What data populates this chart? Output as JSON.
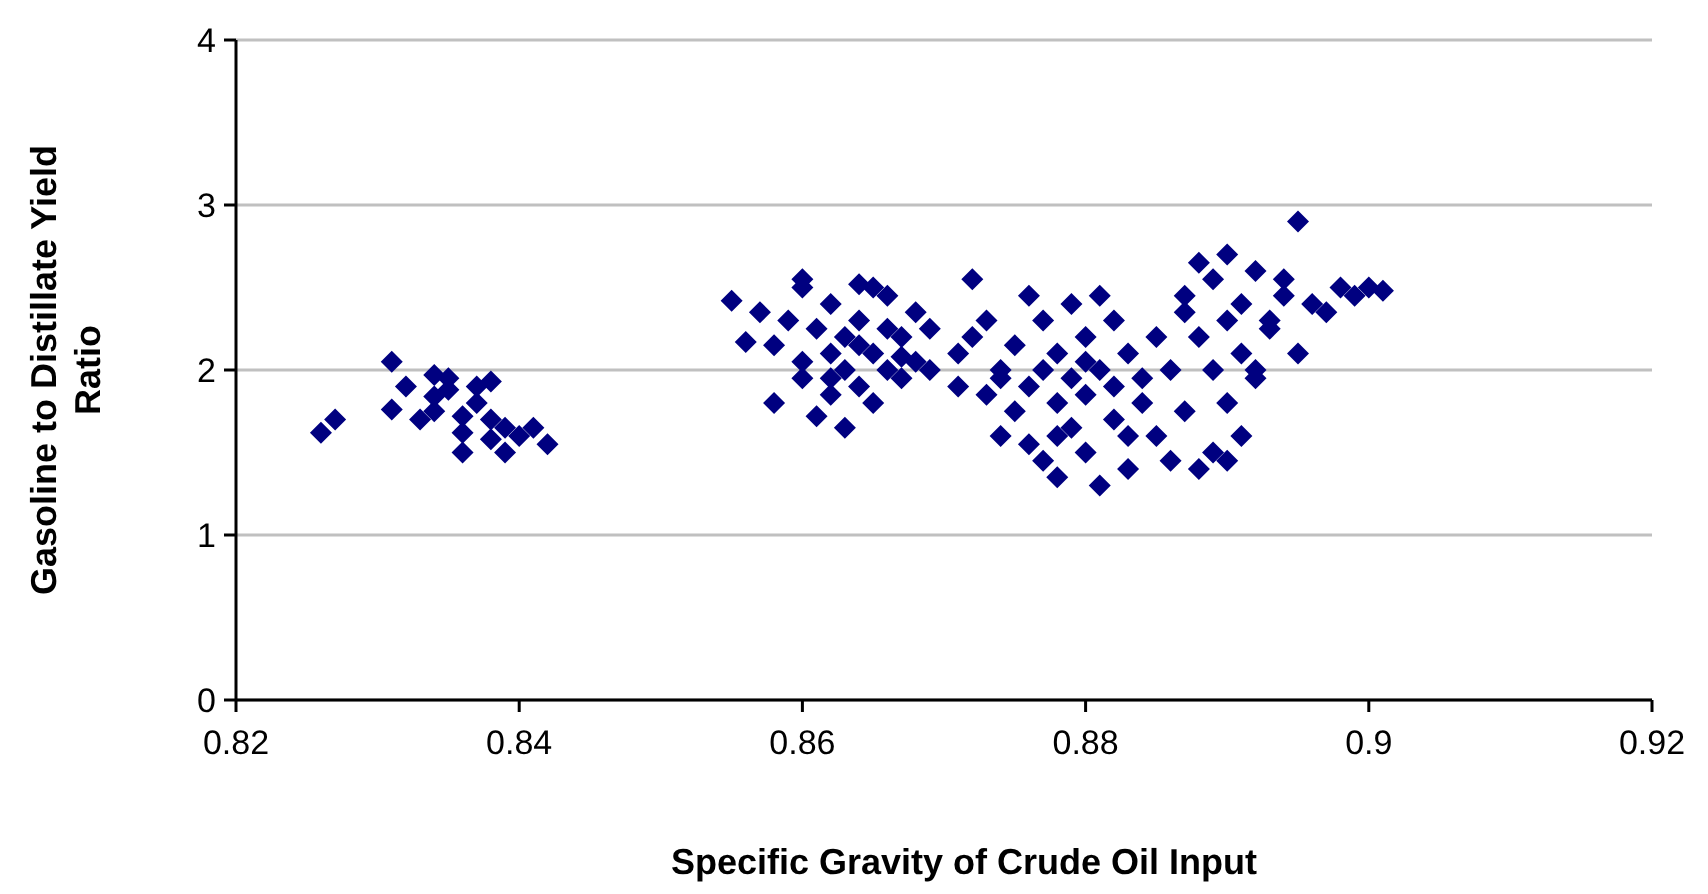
{
  "chart_data": {
    "type": "scatter",
    "xlabel": "Specific Gravity of Crude Oil Input",
    "ylabel": "Gasoline to Distillate Yield Ratio",
    "xlim": [
      0.82,
      0.92
    ],
    "xticks": [
      0.82,
      0.84,
      0.86,
      0.88,
      0.9,
      0.92
    ],
    "ylim": [
      0,
      4
    ],
    "yticks": [
      0,
      1,
      2,
      3,
      4
    ],
    "grid": "y",
    "marker": "diamond",
    "series": [
      {
        "color": "#000080",
        "x": [
          0.826,
          0.827,
          0.831,
          0.831,
          0.832,
          0.833,
          0.834,
          0.834,
          0.835,
          0.835,
          0.836,
          0.836,
          0.837,
          0.837,
          0.838,
          0.838,
          0.839,
          0.839,
          0.84,
          0.841,
          0.842,
          0.836,
          0.838,
          0.834,
          0.855,
          0.856,
          0.857,
          0.858,
          0.858,
          0.859,
          0.86,
          0.86,
          0.86,
          0.861,
          0.861,
          0.862,
          0.862,
          0.862,
          0.863,
          0.863,
          0.863,
          0.864,
          0.864,
          0.864,
          0.865,
          0.865,
          0.866,
          0.866,
          0.866,
          0.867,
          0.867,
          0.868,
          0.868,
          0.869,
          0.869,
          0.86,
          0.865,
          0.862,
          0.864,
          0.867,
          0.871,
          0.871,
          0.872,
          0.872,
          0.873,
          0.873,
          0.874,
          0.874,
          0.875,
          0.875,
          0.876,
          0.876,
          0.876,
          0.877,
          0.877,
          0.877,
          0.878,
          0.878,
          0.878,
          0.879,
          0.879,
          0.879,
          0.88,
          0.88,
          0.88,
          0.881,
          0.881,
          0.881,
          0.882,
          0.882,
          0.882,
          0.883,
          0.883,
          0.884,
          0.884,
          0.885,
          0.885,
          0.886,
          0.886,
          0.887,
          0.887,
          0.878,
          0.883,
          0.874,
          0.88,
          0.887,
          0.888,
          0.888,
          0.888,
          0.889,
          0.889,
          0.889,
          0.89,
          0.89,
          0.89,
          0.891,
          0.891,
          0.891,
          0.892,
          0.892,
          0.893,
          0.894,
          0.894,
          0.895,
          0.895,
          0.896,
          0.897,
          0.898,
          0.899,
          0.9,
          0.901,
          0.893,
          0.89,
          0.892
        ],
        "values": [
          1.62,
          1.7,
          2.05,
          1.76,
          1.9,
          1.7,
          1.97,
          1.75,
          1.88,
          1.95,
          1.62,
          1.5,
          1.8,
          1.9,
          1.58,
          1.93,
          1.5,
          1.65,
          1.6,
          1.65,
          1.55,
          1.72,
          1.7,
          1.84,
          2.42,
          2.17,
          2.35,
          1.8,
          2.15,
          2.3,
          2.5,
          1.95,
          2.05,
          2.25,
          1.72,
          2.4,
          2.1,
          1.85,
          2.0,
          2.2,
          1.65,
          2.52,
          1.9,
          2.3,
          2.1,
          1.8,
          2.45,
          2.0,
          2.25,
          2.2,
          1.95,
          2.35,
          2.05,
          2.25,
          2.0,
          2.55,
          2.5,
          1.95,
          2.15,
          2.08,
          1.9,
          2.1,
          2.55,
          2.2,
          1.85,
          2.3,
          2.0,
          1.6,
          2.15,
          1.75,
          2.45,
          1.9,
          1.55,
          2.3,
          2.0,
          1.45,
          1.8,
          2.1,
          1.35,
          2.4,
          1.95,
          1.65,
          2.2,
          1.85,
          1.5,
          1.3,
          2.45,
          2.0,
          1.7,
          1.9,
          2.3,
          1.4,
          2.1,
          1.8,
          1.95,
          2.2,
          1.6,
          1.45,
          2.0,
          1.75,
          2.35,
          1.6,
          1.6,
          1.95,
          2.05,
          2.45,
          2.65,
          2.2,
          1.4,
          2.0,
          2.55,
          1.5,
          2.7,
          2.3,
          1.45,
          2.4,
          1.6,
          2.1,
          2.6,
          2.0,
          2.3,
          2.45,
          2.55,
          2.1,
          2.9,
          2.4,
          2.35,
          2.5,
          2.45,
          2.5,
          2.48,
          2.25,
          1.8,
          1.95
        ]
      }
    ]
  }
}
